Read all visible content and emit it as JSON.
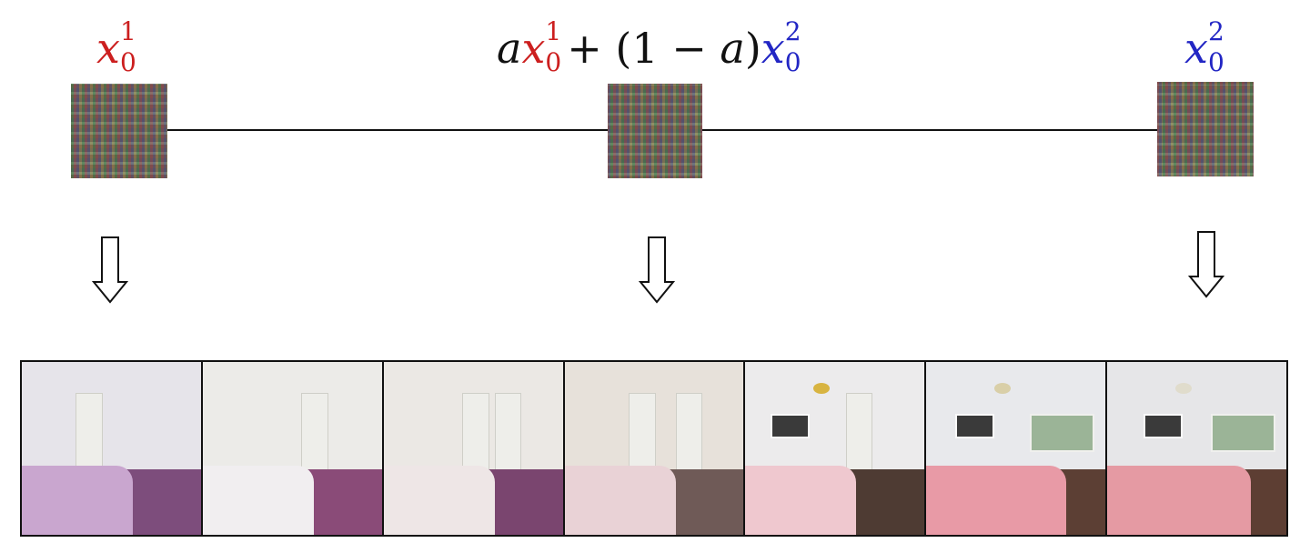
{
  "labels": {
    "left": {
      "var": "x",
      "sup": "1",
      "sub": "0",
      "color": "#cc1f1f"
    },
    "middle": {
      "a": "a",
      "plus": "+ (1 − ",
      "a2": "a",
      "close": ")",
      "var1": "x",
      "sup1": "1",
      "sub1": "0",
      "var2": "x",
      "sup2": "2",
      "sub2": "0"
    },
    "right": {
      "var": "x",
      "sup": "2",
      "sub": "0",
      "color": "#2226c4"
    }
  },
  "nodes": [
    "noise-left",
    "noise-middle",
    "noise-right"
  ],
  "arrows": [
    "down-arrow-icon",
    "down-arrow-icon",
    "down-arrow-icon"
  ],
  "images": [
    {
      "scene": "bedroom",
      "wall": "#e6e4ea",
      "floor": "#7d4d7c",
      "bed": "#c9a6cf"
    },
    {
      "scene": "bedroom",
      "wall": "#ecebe8",
      "floor": "#8a4b78",
      "bed": "#f1eef0"
    },
    {
      "scene": "bedroom",
      "wall": "#ebe8e4",
      "floor": "#7a456f",
      "bed": "#eee6e6"
    },
    {
      "scene": "bedroom",
      "wall": "#e7e1da",
      "floor": "#6f5a57",
      "bed": "#e9d2d6"
    },
    {
      "scene": "bedroom",
      "wall": "#ecebec",
      "floor": "#4e3b33",
      "bed": "#efc8cf"
    },
    {
      "scene": "bedroom",
      "wall": "#e8e9ec",
      "floor": "#5c3f34",
      "bed": "#e89aa6"
    },
    {
      "scene": "bedroom",
      "wall": "#e6e6e8",
      "floor": "#5d3e33",
      "bed": "#e59aa3"
    }
  ]
}
